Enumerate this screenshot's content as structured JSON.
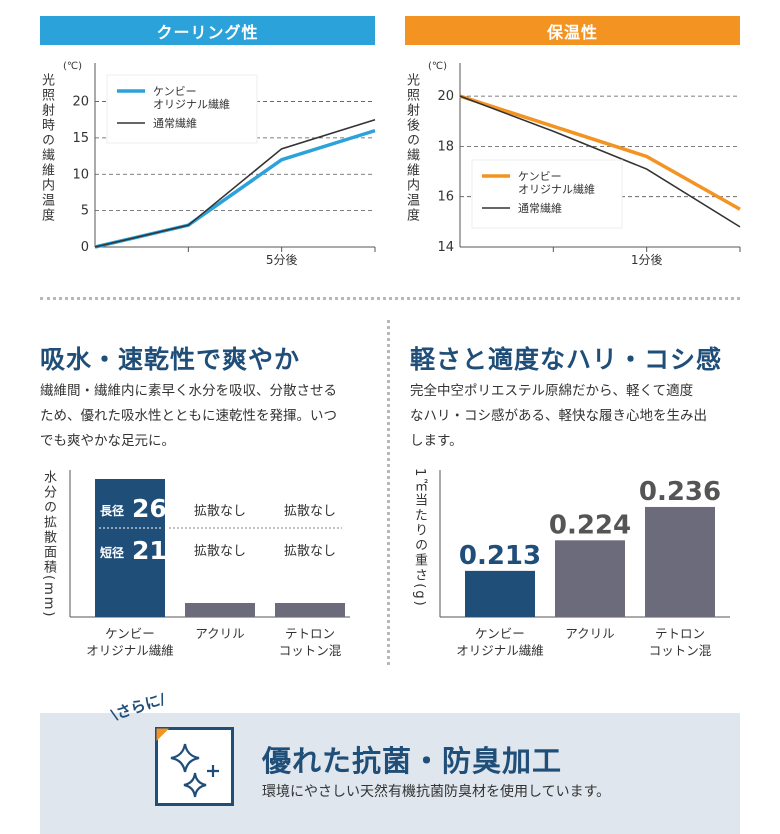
{
  "cooling_banner": "クーリング性",
  "warmth_banner": "保温性",
  "cooling_ylabel": "光照射時の繊維内温度",
  "warmth_ylabel": "光照射後の繊維内温度",
  "absorb_title": "吸水・速乾性で爽やか",
  "absorb_text": [
    "繊維間・繊維内に素早く水分を吸収、分散させる",
    "ため、優れた吸水性とともに速乾性を発揮。いつ",
    "でも爽やかな足元に。"
  ],
  "light_title": "軽さと適度なハリ・コシ感",
  "light_text": [
    "完全中空ポリエステル原綿だから、軽くて適度",
    "なハリ・コシ感がある、軽快な履き心地を生み出",
    "します。"
  ],
  "absorb_ylabel": "水分の拡散面積(mm)",
  "weight_ylabel": "1㎡当たりの重さ(g)",
  "extra_tag": "さらに",
  "extra_title": "優れた抗菌・防臭加工",
  "extra_text": "環境にやさしい天然有機抗菌防臭材を使用しています。",
  "colors": {
    "blue_banner": "#2ca2da",
    "orange_banner": "#f39322",
    "navy": "#1f4e79",
    "gray_bar": "#6b6b7b",
    "blue_line": "#2ca2da",
    "orange_line": "#f39322",
    "black_line": "#333333"
  },
  "chart_data": [
    {
      "type": "line",
      "unit": "(℃)",
      "x": [
        0,
        1,
        2,
        3
      ],
      "xticks": [
        {
          "x": 2,
          "label": "5分後"
        }
      ],
      "yticks": [
        0,
        5,
        10,
        15,
        20
      ],
      "ylim": [
        0,
        22
      ],
      "grid": true,
      "legend": "top-left",
      "series": [
        {
          "name": "ケンビー\nオリジナル繊維",
          "values": [
            0,
            3,
            12,
            16
          ],
          "color": "#2ca2da"
        },
        {
          "name": "通常繊維",
          "values": [
            0,
            3,
            13.5,
            17.5
          ],
          "color": "#333333"
        }
      ]
    },
    {
      "type": "line",
      "unit": "(℃)",
      "x": [
        0,
        1,
        2,
        3
      ],
      "xticks": [
        {
          "x": 2,
          "label": "1分後"
        }
      ],
      "yticks": [
        14,
        16,
        18,
        20
      ],
      "ylim": [
        14,
        20.6
      ],
      "grid": true,
      "legend": "bottom-left",
      "series": [
        {
          "name": "ケンビー\nオリジナル繊維",
          "values": [
            20,
            18.8,
            17.6,
            15.5
          ],
          "color": "#f39322"
        },
        {
          "name": "通常繊維",
          "values": [
            20,
            18.6,
            17.1,
            14.8
          ],
          "color": "#333333"
        }
      ]
    },
    {
      "type": "bar",
      "categories": [
        "ケンビー\nオリジナル繊維",
        "アクリル",
        "テトロン\nコットン混"
      ],
      "series": [
        {
          "name": "長径",
          "values": [
            26,
            null,
            null
          ]
        },
        {
          "name": "短径",
          "values": [
            21,
            null,
            null
          ]
        }
      ],
      "labels": [
        {
          "long": "長径",
          "long_value": "26",
          "short": "短径",
          "short_value": "21"
        },
        {
          "long_text": "拡散なし",
          "short_text": "拡散なし"
        },
        {
          "long_text": "拡散なし",
          "short_text": "拡散なし"
        }
      ]
    },
    {
      "type": "bar",
      "categories": [
        "ケンビー\nオリジナル繊維",
        "アクリル",
        "テトロン\nコットン混"
      ],
      "values": [
        0.213,
        0.224,
        0.236
      ],
      "value_labels": [
        "0.213",
        "0.224",
        "0.236"
      ],
      "colors": [
        "#1f4e79",
        "#6b6b7b",
        "#6b6b7b"
      ]
    }
  ]
}
